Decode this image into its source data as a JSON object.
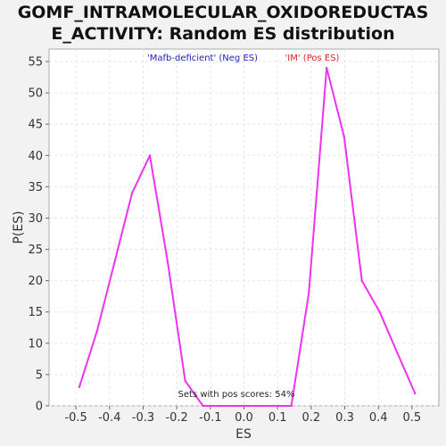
{
  "chart_data": {
    "type": "line",
    "title_line1": "GOMF_INTRAMOLECULAR_OXIDOREDUCTAS",
    "title_line2": "E_ACTIVITY: Random ES distribution",
    "xlabel": "ES",
    "ylabel": "P(ES)",
    "xlim": [
      -0.58,
      0.58
    ],
    "ylim": [
      0,
      57
    ],
    "xticks": [
      -0.5,
      -0.4,
      -0.3,
      -0.2,
      -0.1,
      0.0,
      0.1,
      0.2,
      0.3,
      0.4,
      0.5
    ],
    "xtick_labels": [
      "-0.5",
      "-0.4",
      "-0.3",
      "-0.2",
      "-0.1",
      "0.0",
      "0.1",
      "0.2",
      "0.3",
      "0.4",
      "0.5"
    ],
    "yticks": [
      0,
      5,
      10,
      15,
      20,
      25,
      30,
      35,
      40,
      45,
      50,
      55
    ],
    "ytick_labels": [
      "0",
      "5",
      "10",
      "15",
      "20",
      "25",
      "30",
      "35",
      "40",
      "45",
      "50",
      "55"
    ],
    "grid": true,
    "legend": {
      "neg": {
        "label": "'Mafb-deficient' (Neg ES)",
        "color": "#2222bb"
      },
      "pos": {
        "label": "'IM' (Pos ES)",
        "color": "#dd2222"
      }
    },
    "annotation": "Sets with pos scores: 54%",
    "series": [
      {
        "color": "#ee33ee",
        "x": [
          -0.49,
          -0.437,
          -0.385,
          -0.333,
          -0.28,
          -0.227,
          -0.175,
          -0.122,
          -0.07,
          -0.017,
          0.036,
          0.088,
          0.141,
          0.193,
          0.246,
          0.298,
          0.351,
          0.404,
          0.456,
          0.509
        ],
        "y": [
          3,
          12,
          23,
          34,
          40,
          23,
          4,
          0,
          0,
          0,
          0,
          0,
          0,
          18,
          54,
          43,
          20,
          15,
          8.5,
          2
        ]
      }
    ]
  }
}
